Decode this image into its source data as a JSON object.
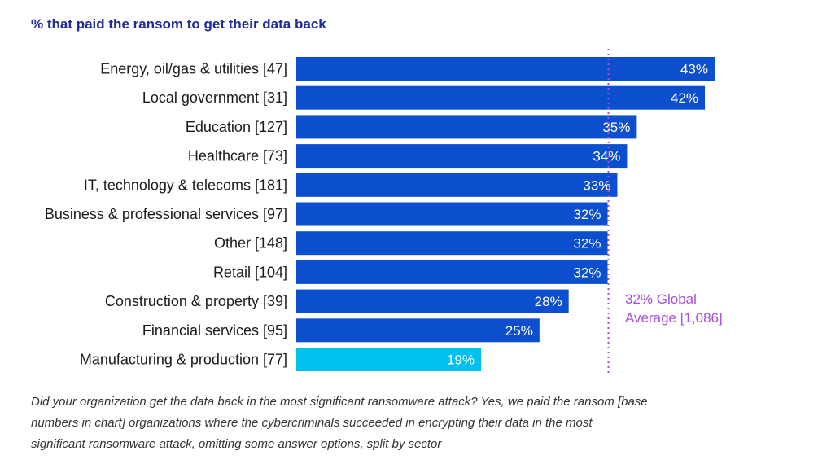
{
  "chart_data": {
    "type": "bar",
    "orientation": "horizontal",
    "title": "% that paid the ransom to get their data back",
    "categories": [
      "Energy, oil/gas & utilities [47]",
      "Local government [31]",
      "Education [127]",
      "Healthcare [73]",
      "IT, technology & telecoms [181]",
      "Business & professional services [97]",
      "Other [148]",
      "Retail [104]",
      "Construction & property [39]",
      "Financial services [95]",
      "Manufacturing & production [77]"
    ],
    "values": [
      43,
      42,
      35,
      34,
      33,
      32,
      32,
      32,
      28,
      25,
      19
    ],
    "value_labels": [
      "43%",
      "42%",
      "35%",
      "34%",
      "33%",
      "32%",
      "32%",
      "32%",
      "28%",
      "25%",
      "19%"
    ],
    "reference_line": {
      "value": 32,
      "label_lines": [
        "32% Global",
        "Average [1,086]"
      ]
    },
    "xlim": [
      0,
      43
    ],
    "grid": false,
    "colors": {
      "bar": "#0b4fcf",
      "highlight_bar": "#00c0f0",
      "average_line": "#a64fd9",
      "title": "#1f2a9c"
    },
    "highlight_index": 10
  },
  "caption": "Did your organization get the data back in the most significant ransomware attack? Yes, we paid the ransom [base numbers in chart] organizations where the cybercriminals succeeded in encrypting their data in the most significant ransomware attack, omitting some answer options, split by sector"
}
